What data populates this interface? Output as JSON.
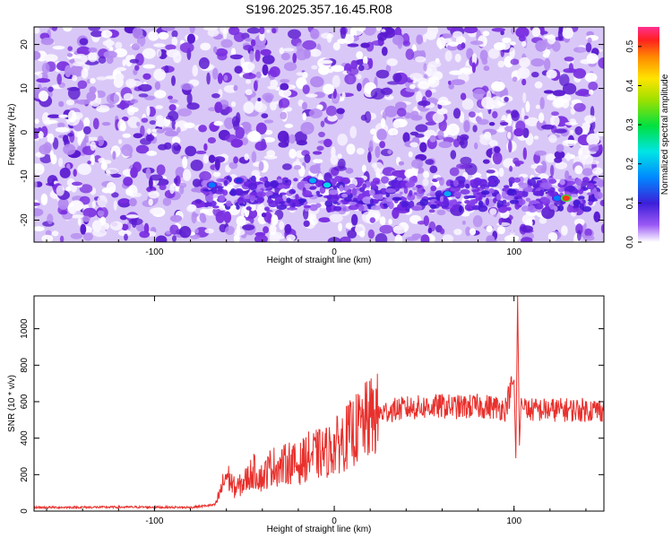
{
  "title": "S196.2025.357.16.45.R08",
  "colors": {
    "signal_line": "#e8302c",
    "spectrogram_background": "#ffffff",
    "axis": "#000000"
  },
  "chart_data": [
    {
      "type": "heatmap",
      "title": "S196.2025.357.16.45.R08",
      "xlabel": "Height of straight line (km)",
      "ylabel": "Frequency (Hz)",
      "xlim": [
        -167,
        150
      ],
      "ylim": [
        -25,
        24
      ],
      "xticks": [
        "-100",
        "0",
        "100"
      ],
      "xtick_values": [
        -100,
        0,
        100
      ],
      "yticks": [
        "20",
        "10",
        "0",
        "-10",
        "-20"
      ],
      "ytick_values": [
        20,
        10,
        0,
        -10,
        -20
      ],
      "colorbar": {
        "label": "Normalized spectral amplitude",
        "range": [
          0,
          0.55
        ],
        "ticks": [
          "0.0",
          "0.1",
          "0.2",
          "0.3",
          "0.4",
          "0.5"
        ],
        "tick_values": [
          0.0,
          0.1,
          0.2,
          0.3,
          0.4,
          0.5
        ]
      },
      "band": {
        "frequency_center": -14,
        "frequency_halfwidth": 3.5,
        "x_start": -72,
        "x_end": 150,
        "typical_amplitude": 0.1
      },
      "hotspots": [
        {
          "x": -68,
          "y": -12,
          "value": 0.18
        },
        {
          "x": -53,
          "y": -11,
          "value": 0.15
        },
        {
          "x": -12,
          "y": -11,
          "value": 0.2
        },
        {
          "x": -4,
          "y": -12,
          "value": 0.22
        },
        {
          "x": 63,
          "y": -14,
          "value": 0.2
        },
        {
          "x": 124,
          "y": -15,
          "value": 0.18
        },
        {
          "x": 129,
          "y": -15,
          "value": 0.5
        }
      ]
    },
    {
      "type": "line",
      "xlabel": "Height of straight line (km)",
      "ylabel": "SNR (10 * v/v)",
      "xlim": [
        -167,
        150
      ],
      "ylim": [
        0,
        1180
      ],
      "xticks": [
        "-100",
        "0",
        "100"
      ],
      "xtick_values": [
        -100,
        0,
        100
      ],
      "yticks": [
        "0",
        "200",
        "400",
        "600",
        "800",
        "1000"
      ],
      "ytick_values": [
        0,
        200,
        400,
        600,
        800,
        1000
      ],
      "series": [
        {
          "x": [
            -167,
            -110,
            -80,
            -66,
            -60,
            -55,
            -50,
            -45,
            -40,
            -35,
            -30,
            -25,
            -20,
            -15,
            -10,
            -5,
            0,
            5,
            10,
            15,
            20,
            25,
            30,
            40,
            50,
            60,
            70,
            80,
            90,
            95,
            100,
            101,
            102,
            103,
            104,
            105,
            110,
            120,
            130,
            140,
            150
          ],
          "values": [
            20,
            22,
            20,
            35,
            200,
            120,
            160,
            220,
            180,
            250,
            240,
            270,
            250,
            300,
            310,
            320,
            350,
            390,
            430,
            470,
            510,
            530,
            550,
            565,
            570,
            575,
            570,
            575,
            570,
            560,
            720,
            290,
            1180,
            360,
            620,
            560,
            555,
            555,
            555,
            555,
            555
          ]
        }
      ]
    }
  ]
}
